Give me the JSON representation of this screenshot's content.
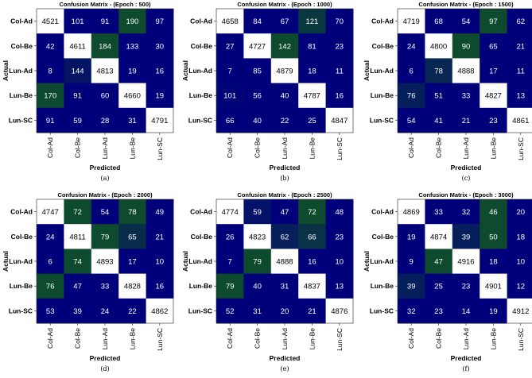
{
  "figure": {
    "caption_font": "serif"
  },
  "colors": {
    "low": "#00007a",
    "mid_dark": "#0d4a2e",
    "pink_light": "#f4c8ef",
    "pink_strong": "#e96fd8",
    "white": "#ffffff",
    "text_dark": "#000000",
    "text_light": "#ffffff"
  },
  "chart_data": [
    {
      "type": "heatmap",
      "title": "Confusion Matrix - (Epoch : 500)",
      "caption": "(a)",
      "xlabel": "Predicted",
      "ylabel": "Actual",
      "row_labels": [
        "Col-Ad",
        "Col-Be",
        "Lun-Ad",
        "Lun-Be",
        "Lun-SC"
      ],
      "col_labels": [
        "Col-Ad",
        "Col-Be",
        "Lun-Ad",
        "Lun-Be",
        "Lun-SC"
      ],
      "values": [
        [
          4521,
          101,
          91,
          190,
          97
        ],
        [
          42,
          4611,
          184,
          133,
          30
        ],
        [
          8,
          144,
          4813,
          19,
          16
        ],
        [
          170,
          91,
          60,
          4660,
          19
        ],
        [
          91,
          59,
          28,
          31,
          4791
        ]
      ]
    },
    {
      "type": "heatmap",
      "title": "Confusion Matrix - (Epoch : 1000)",
      "caption": "(b)",
      "xlabel": "Predicted",
      "ylabel": "Actual",
      "row_labels": [
        "Col-Ad",
        "Col-Be",
        "Lun-Ad",
        "Lun-Be",
        "Lun-SC"
      ],
      "col_labels": [
        "Col-Ad",
        "Col-Be",
        "Lun-Ad",
        "Lun-Be",
        "Lun-SC"
      ],
      "values": [
        [
          4658,
          84,
          67,
          121,
          70
        ],
        [
          27,
          4727,
          142,
          81,
          23
        ],
        [
          7,
          85,
          4879,
          18,
          11
        ],
        [
          101,
          56,
          40,
          4787,
          16
        ],
        [
          66,
          40,
          22,
          25,
          4847
        ]
      ]
    },
    {
      "type": "heatmap",
      "title": "Confusion Matrix - (Epoch : 1500)",
      "caption": "(c)",
      "xlabel": "Predicted",
      "ylabel": "Actual",
      "row_labels": [
        "Col-Ad",
        "Col-Be",
        "Lun-Ad",
        "Lun-Be",
        "Lun-SC"
      ],
      "col_labels": [
        "Col-Ad",
        "Col-Be",
        "Lun-Ad",
        "Lun-Be",
        "Lun-SC"
      ],
      "values": [
        [
          4719,
          68,
          54,
          97,
          62
        ],
        [
          24,
          4800,
          90,
          65,
          21
        ],
        [
          6,
          78,
          4888,
          17,
          11
        ],
        [
          76,
          51,
          33,
          4827,
          13
        ],
        [
          54,
          41,
          21,
          23,
          4861
        ]
      ]
    },
    {
      "type": "heatmap",
      "title": "Confusion Matrix - (Epoch : 2000)",
      "caption": "(d)",
      "xlabel": "Predicted",
      "ylabel": "Actual",
      "row_labels": [
        "Col-Ad",
        "Col-Be",
        "Lun-Ad",
        "Lun-Be",
        "Lun-SC"
      ],
      "col_labels": [
        "Col-Ad",
        "Col-Be",
        "Lun-Ad",
        "Lun-Be",
        "Lun-SC"
      ],
      "values": [
        [
          4747,
          72,
          54,
          78,
          49
        ],
        [
          24,
          4811,
          79,
          65,
          21
        ],
        [
          6,
          74,
          4893,
          17,
          10
        ],
        [
          76,
          47,
          33,
          4828,
          16
        ],
        [
          53,
          39,
          24,
          22,
          4862
        ]
      ]
    },
    {
      "type": "heatmap",
      "title": "Confusion Matrix - (Epoch : 2500)",
      "caption": "(e)",
      "xlabel": "Predicted",
      "ylabel": "Actual",
      "row_labels": [
        "Col-Ad",
        "Col-Be",
        "Lun-Ad",
        "Lun-Be",
        "Lun-SC"
      ],
      "col_labels": [
        "Col-Ad",
        "Col-Be",
        "Lun-Ad",
        "Lun-Be",
        "Lun-SC"
      ],
      "values": [
        [
          4774,
          59,
          47,
          72,
          48
        ],
        [
          26,
          4823,
          62,
          66,
          23
        ],
        [
          7,
          79,
          4888,
          16,
          10
        ],
        [
          79,
          40,
          31,
          4837,
          13
        ],
        [
          52,
          31,
          20,
          21,
          4876
        ]
      ]
    },
    {
      "type": "heatmap",
      "title": "Confusion Matrix - (Epoch : 3000)",
      "caption": "(f)",
      "xlabel": "Predicted",
      "ylabel": "Actual",
      "row_labels": [
        "Col-Ad",
        "Col-Be",
        "Lun-Ad",
        "Lun-Be",
        "Lun-SC"
      ],
      "col_labels": [
        "Col-Ad",
        "Col-Be",
        "Lun-Ad",
        "Lun-Be",
        "Lun-SC"
      ],
      "values": [
        [
          4869,
          33,
          32,
          46,
          20
        ],
        [
          19,
          4874,
          39,
          50,
          18
        ],
        [
          9,
          47,
          4916,
          18,
          10
        ],
        [
          39,
          25,
          23,
          4901,
          12
        ],
        [
          32,
          23,
          14,
          19,
          4912
        ]
      ]
    }
  ]
}
